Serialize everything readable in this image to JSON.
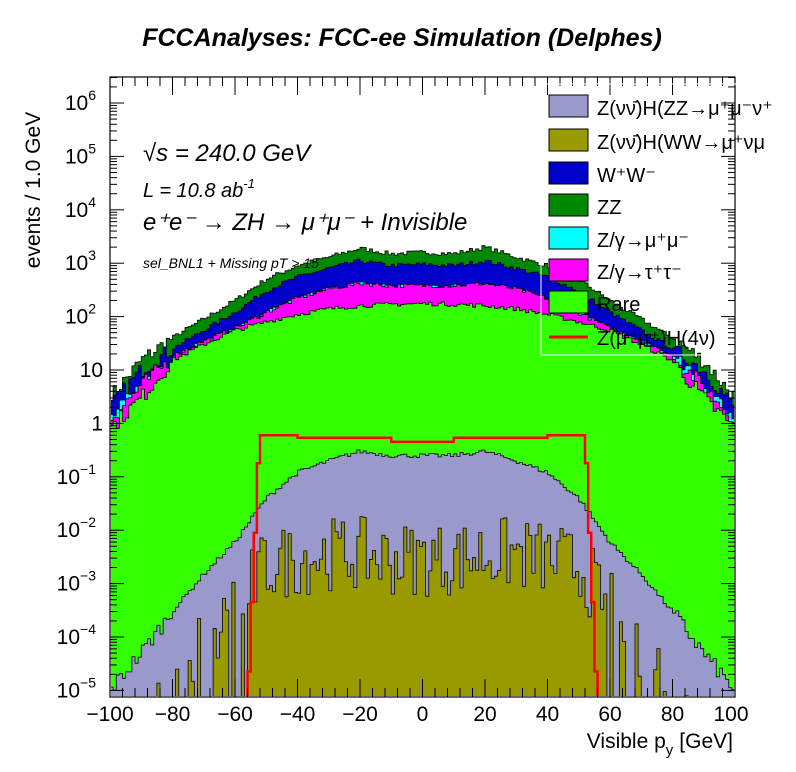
{
  "chart_data": {
    "type": "bar",
    "subtype": "stacked-histogram-log",
    "title": "FCCAnalyses: FCC-ee Simulation (Delphes)",
    "xlabel": "Visible p_y [GeV]",
    "xlabel_main": "Visible p",
    "xlabel_sub": "y",
    "xlabel_unit": "[GeV]",
    "ylabel": "events / 1.0 GeV",
    "xlim": [
      -100,
      100
    ],
    "ylim": [
      7.5e-06,
      3000000
    ],
    "yscale": "log",
    "x_ticks": [
      "−100",
      "−80",
      "−60",
      "−40",
      "−20",
      "0",
      "20",
      "40",
      "60",
      "80",
      "100"
    ],
    "y_ticks": [
      {
        "base": "10",
        "exp": "−5",
        "v": 1e-05
      },
      {
        "base": "10",
        "exp": "−4",
        "v": 0.0001
      },
      {
        "base": "10",
        "exp": "−3",
        "v": 0.001
      },
      {
        "base": "10",
        "exp": "−2",
        "v": 0.01
      },
      {
        "base": "10",
        "exp": "−1",
        "v": 0.1
      },
      {
        "base": "1",
        "exp": "",
        "v": 1
      },
      {
        "base": "10",
        "exp": "",
        "v": 10
      },
      {
        "base": "10",
        "exp": "2",
        "v": 100
      },
      {
        "base": "10",
        "exp": "3",
        "v": 1000
      },
      {
        "base": "10",
        "exp": "4",
        "v": 10000
      },
      {
        "base": "10",
        "exp": "5",
        "v": 100000
      },
      {
        "base": "10",
        "exp": "6",
        "v": 1000000
      }
    ],
    "x_points": [
      -100,
      -90,
      -80,
      -70,
      -60,
      -50,
      -40,
      -30,
      -20,
      -10,
      0,
      10,
      20,
      30,
      40,
      50,
      60,
      70,
      80,
      90,
      100
    ],
    "stack_tops_note": "cumulative stack top values (events / 1 GeV) at x_points",
    "series": [
      {
        "name": "ZZ",
        "color": "#008800",
        "values": [
          3,
          15,
          40,
          90,
          200,
          500,
          900,
          1300,
          1900,
          1500,
          1600,
          1500,
          2000,
          1300,
          900,
          500,
          200,
          90,
          40,
          15,
          3
        ]
      },
      {
        "name": "W⁺W⁻",
        "color": "#0000cc",
        "values": [
          2,
          10,
          25,
          55,
          120,
          300,
          550,
          800,
          1100,
          900,
          950,
          900,
          1100,
          800,
          550,
          300,
          120,
          55,
          25,
          10,
          2
        ]
      },
      {
        "name": "Z/γ→μ⁺μ⁻",
        "color": "#00ffff",
        "values": [
          1.2,
          5,
          18,
          35,
          60,
          120,
          220,
          330,
          420,
          380,
          380,
          380,
          420,
          330,
          220,
          120,
          60,
          35,
          18,
          5,
          1.2
        ]
      },
      {
        "name": "Z/γ→τ⁺τ⁻",
        "color": "#ff00ff",
        "values": [
          1.2,
          5,
          18,
          35,
          60,
          120,
          220,
          330,
          420,
          380,
          380,
          380,
          420,
          330,
          220,
          120,
          60,
          35,
          18,
          5,
          1.2
        ]
      },
      {
        "name": "Rare",
        "color": "#33ff00",
        "values": [
          0.8,
          3,
          15,
          30,
          55,
          80,
          110,
          140,
          160,
          170,
          175,
          170,
          160,
          140,
          110,
          80,
          55,
          30,
          15,
          3,
          0.8
        ]
      },
      {
        "name": "Z(νν̄)H(ZZ→μ⁺μ⁻νν̄)",
        "color": "#9999cc",
        "values": [
          1e-05,
          5e-05,
          0.0003,
          0.0015,
          0.006,
          0.04,
          0.12,
          0.2,
          0.3,
          0.25,
          0.25,
          0.25,
          0.3,
          0.2,
          0.12,
          0.04,
          0.006,
          0.0015,
          0.0003,
          5e-05,
          1e-05
        ]
      },
      {
        "name": "Z(νν̄)H(WW→μ⁺νμ⁻ν̄)",
        "color": "#999900",
        "values": [
          0,
          0,
          2e-05,
          0.0001,
          0.0005,
          0.003,
          0.004,
          0.005,
          0.005,
          0.004,
          0.004,
          0.004,
          0.005,
          0.005,
          0.004,
          0.003,
          0.0005,
          0.0001,
          2e-05,
          0,
          0
        ]
      }
    ],
    "signal": {
      "name": "Z(μ⁻μ⁺)H(4ν)",
      "color": "#ff0000",
      "x_range": [
        -57,
        57
      ],
      "plateau_edges": [
        -52,
        52
      ],
      "values": {
        "edge": 0.8,
        "center": 0.45,
        "peaks": 0.6
      }
    }
  },
  "annotations": {
    "sqrt_s": "√s = 240.0 GeV",
    "lumi_main": "L = 10.8 ab",
    "lumi_exp": "-1",
    "process": "e⁺e⁻ → ZH → μ⁺μ⁻ + Invisible",
    "selection": "sel_BNL1 + Missing pT > 15"
  },
  "legend": [
    {
      "label": "Z(νν̄)H(ZZ→μ⁺μ⁻ν⁺",
      "color": "#9999cc",
      "kind": "box"
    },
    {
      "label": "Z(νν̄)H(WW→μ⁺νμ",
      "color": "#999900",
      "kind": "box"
    },
    {
      "label": "W⁺W⁻",
      "color": "#0000cc",
      "kind": "box"
    },
    {
      "label": "ZZ",
      "color": "#008800",
      "kind": "box"
    },
    {
      "label": "Z/γ→μ⁺μ⁻",
      "color": "#00ffff",
      "kind": "box"
    },
    {
      "label": "Z/γ→τ⁺τ⁻",
      "color": "#ff00ff",
      "kind": "box"
    },
    {
      "label": "Rare",
      "color": "#33ff00",
      "kind": "box"
    },
    {
      "label": "Z(μ⁻μ⁺)H(4ν)",
      "color": "#ff0000",
      "kind": "line"
    }
  ]
}
